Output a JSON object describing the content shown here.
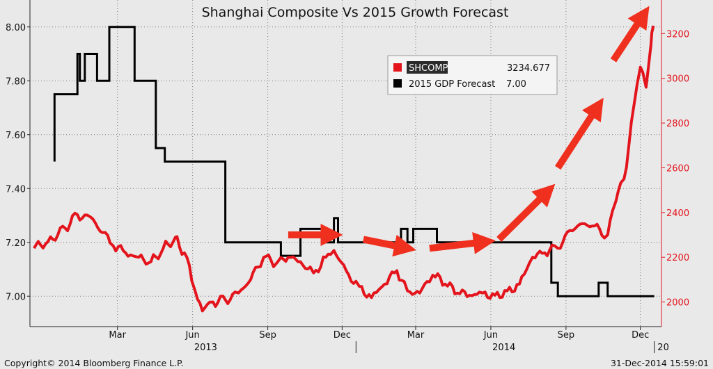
{
  "chart_data": {
    "type": "line",
    "title": "Shanghai Composite Vs 2015 Growth Forecast",
    "x_tick_months": [
      "Mar",
      "Jun",
      "Sep",
      "Dec",
      "Mar",
      "Jun",
      "Sep",
      "Dec"
    ],
    "x_tick_years": [
      "2013",
      "2014",
      "20"
    ],
    "y_left_ticks": [
      "8.00",
      "7.80",
      "7.60",
      "7.40",
      "7.20",
      "7.00"
    ],
    "y_left_range": [
      6.9,
      8.1
    ],
    "y_right_ticks": [
      "3200",
      "3000",
      "2800",
      "2600",
      "2400",
      "2200",
      "2000"
    ],
    "y_right_range": [
      1890,
      3350
    ],
    "x_range": [
      "2012-12-03",
      "2015-01-09"
    ],
    "grid": true,
    "legend_position": "top-center",
    "series": [
      {
        "name": "SHCOMP",
        "last_value": "3234.677",
        "axis": "right",
        "color": "#e3141c",
        "points": [
          [
            "2012-12-03",
            2240
          ],
          [
            "2012-12-20",
            2270
          ],
          [
            "2013-01-10",
            2330
          ],
          [
            "2013-01-25",
            2390
          ],
          [
            "2013-02-10",
            2380
          ],
          [
            "2013-02-25",
            2310
          ],
          [
            "2013-03-10",
            2250
          ],
          [
            "2013-03-25",
            2220
          ],
          [
            "2013-04-10",
            2200
          ],
          [
            "2013-04-25",
            2180
          ],
          [
            "2013-05-10",
            2240
          ],
          [
            "2013-05-25",
            2290
          ],
          [
            "2013-06-08",
            2200
          ],
          [
            "2013-06-18",
            2050
          ],
          [
            "2013-06-27",
            1960
          ],
          [
            "2013-07-10",
            2000
          ],
          [
            "2013-07-25",
            2010
          ],
          [
            "2013-08-10",
            2040
          ],
          [
            "2013-08-25",
            2100
          ],
          [
            "2013-09-10",
            2200
          ],
          [
            "2013-09-25",
            2170
          ],
          [
            "2013-10-10",
            2200
          ],
          [
            "2013-10-25",
            2180
          ],
          [
            "2013-11-10",
            2130
          ],
          [
            "2013-11-25",
            2200
          ],
          [
            "2013-12-05",
            2230
          ],
          [
            "2013-12-20",
            2140
          ],
          [
            "2014-01-05",
            2070
          ],
          [
            "2014-01-20",
            2020
          ],
          [
            "2014-02-05",
            2080
          ],
          [
            "2014-02-20",
            2140
          ],
          [
            "2014-03-05",
            2050
          ],
          [
            "2014-03-20",
            2040
          ],
          [
            "2014-04-05",
            2120
          ],
          [
            "2014-04-20",
            2080
          ],
          [
            "2014-05-05",
            2040
          ],
          [
            "2014-05-20",
            2030
          ],
          [
            "2014-06-05",
            2040
          ],
          [
            "2014-06-20",
            2030
          ],
          [
            "2014-07-05",
            2050
          ],
          [
            "2014-07-20",
            2080
          ],
          [
            "2014-08-05",
            2200
          ],
          [
            "2014-08-20",
            2220
          ],
          [
            "2014-09-05",
            2240
          ],
          [
            "2014-09-20",
            2320
          ],
          [
            "2014-10-05",
            2350
          ],
          [
            "2014-10-20",
            2340
          ],
          [
            "2014-11-05",
            2300
          ],
          [
            "2014-11-15",
            2450
          ],
          [
            "2014-11-25",
            2550
          ],
          [
            "2014-12-01",
            2700
          ],
          [
            "2014-12-08",
            2900
          ],
          [
            "2014-12-15",
            3050
          ],
          [
            "2014-12-22",
            2960
          ],
          [
            "2014-12-28",
            3150
          ],
          [
            "2014-12-31",
            3234.677
          ]
        ]
      },
      {
        "name": "2015 GDP Forecast",
        "last_value": "7.00",
        "axis": "left",
        "color": "#000000",
        "points": [
          [
            "2012-12-28",
            7.5
          ],
          [
            "2012-12-28",
            7.75
          ],
          [
            "2013-01-25",
            7.75
          ],
          [
            "2013-01-25",
            7.9
          ],
          [
            "2013-01-28",
            7.9
          ],
          [
            "2013-01-28",
            7.8
          ],
          [
            "2013-02-03",
            7.8
          ],
          [
            "2013-02-03",
            7.9
          ],
          [
            "2013-02-18",
            7.9
          ],
          [
            "2013-02-18",
            7.8
          ],
          [
            "2013-03-05",
            7.8
          ],
          [
            "2013-03-05",
            8.0
          ],
          [
            "2013-04-05",
            8.0
          ],
          [
            "2013-04-05",
            7.8
          ],
          [
            "2013-05-01",
            7.8
          ],
          [
            "2013-05-01",
            7.55
          ],
          [
            "2013-05-12",
            7.55
          ],
          [
            "2013-05-12",
            7.5
          ],
          [
            "2013-07-25",
            7.5
          ],
          [
            "2013-07-25",
            7.2
          ],
          [
            "2013-10-01",
            7.2
          ],
          [
            "2013-10-01",
            7.15
          ],
          [
            "2013-10-25",
            7.15
          ],
          [
            "2013-10-25",
            7.25
          ],
          [
            "2013-11-22",
            7.25
          ],
          [
            "2013-11-22",
            7.2
          ],
          [
            "2013-12-05",
            7.2
          ],
          [
            "2013-12-05",
            7.29
          ],
          [
            "2013-12-10",
            7.29
          ],
          [
            "2013-12-10",
            7.2
          ],
          [
            "2014-02-25",
            7.2
          ],
          [
            "2014-02-25",
            7.25
          ],
          [
            "2014-03-05",
            7.25
          ],
          [
            "2014-03-05",
            7.2
          ],
          [
            "2014-03-12",
            7.2
          ],
          [
            "2014-03-12",
            7.25
          ],
          [
            "2014-04-10",
            7.25
          ],
          [
            "2014-04-10",
            7.2
          ],
          [
            "2014-08-28",
            7.2
          ],
          [
            "2014-08-28",
            7.05
          ],
          [
            "2014-09-05",
            7.05
          ],
          [
            "2014-09-05",
            7.0
          ],
          [
            "2014-10-25",
            7.0
          ],
          [
            "2014-10-25",
            7.05
          ],
          [
            "2014-11-05",
            7.05
          ],
          [
            "2014-11-05",
            7.0
          ],
          [
            "2015-01-01",
            7.0
          ]
        ]
      }
    ],
    "annotations": {
      "arrows": "red upward/rightward trend arrows over the SHCOMP line",
      "arrow_segments": [
        [
          [
            "2013-10-10",
            2300
          ],
          [
            "2013-12-05",
            2300
          ]
        ],
        [
          [
            "2014-01-10",
            2280
          ],
          [
            "2014-03-05",
            2240
          ]
        ],
        [
          [
            "2014-04-01",
            2240
          ],
          [
            "2014-06-10",
            2270
          ]
        ],
        [
          [
            "2014-06-25",
            2280
          ],
          [
            "2014-08-25",
            2500
          ]
        ],
        [
          [
            "2014-09-05",
            2600
          ],
          [
            "2014-10-25",
            2880
          ]
        ],
        [
          [
            "2014-11-12",
            3080
          ],
          [
            "2014-12-20",
            3290
          ]
        ]
      ],
      "arrow_color": "#f0301e"
    }
  },
  "legend": {
    "items": [
      {
        "name": "SHCOMP",
        "value": "3234.677",
        "color": "#e3141c"
      },
      {
        "name": "2015 GDP Forecast",
        "value": "7.00",
        "color": "#000000"
      }
    ]
  },
  "footer": {
    "copyright": "Copyright© 2014 Bloomberg Finance L.P.",
    "timestamp": "31-Dec-2014 15:59:01"
  }
}
